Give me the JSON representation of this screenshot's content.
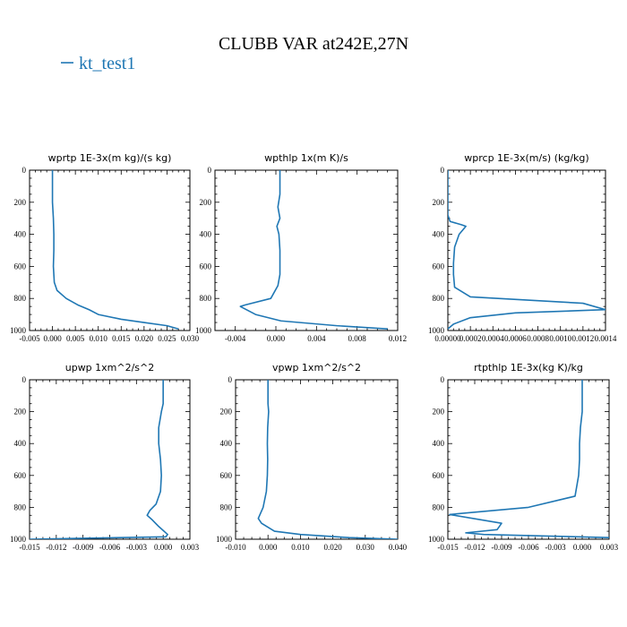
{
  "figure": {
    "title": "CLUBB VAR at242E,27N",
    "legend": [
      {
        "label": "kt_test1",
        "color": "#1f77b4"
      }
    ]
  },
  "chart_data": [
    {
      "type": "line",
      "title": "wprtp   1E-3x(m kg)/(s kg)",
      "xlim": [
        -0.005,
        0.03
      ],
      "ylim": [
        1000,
        0
      ],
      "xticks": [
        -0.005,
        0.0,
        0.005,
        0.01,
        0.015,
        0.02,
        0.025,
        0.03
      ],
      "xtick_labels": [
        "-0.005",
        "0.000",
        "0.005",
        "0.010",
        "0.015",
        "0.020",
        "0.025",
        "0.030"
      ],
      "yticks": [
        0,
        200,
        400,
        600,
        800,
        1000
      ],
      "ytick_labels": [
        "0",
        "200",
        "400",
        "600",
        "800",
        "1000"
      ],
      "series": [
        {
          "name": "kt_test1",
          "color": "#1f77b4",
          "x": [
            0.0,
            0.0,
            0.0002,
            0.0003,
            0.0003,
            0.0002,
            0.0004,
            0.001,
            0.003,
            0.0055,
            0.008,
            0.01,
            0.015,
            0.02,
            0.025,
            0.0275
          ],
          "y": [
            0,
            200,
            300,
            400,
            500,
            600,
            700,
            750,
            800,
            840,
            870,
            900,
            930,
            950,
            970,
            990
          ]
        }
      ]
    },
    {
      "type": "line",
      "title": "wpthlp   1x(m K)/s",
      "xlim": [
        -0.006,
        0.012
      ],
      "ylim": [
        1000,
        0
      ],
      "xticks": [
        -0.004,
        0.0,
        0.004,
        0.008,
        0.012
      ],
      "xtick_labels": [
        "-0.004",
        "0.000",
        "0.004",
        "0.008",
        "0.012"
      ],
      "yticks": [
        0,
        200,
        400,
        600,
        800,
        1000
      ],
      "ytick_labels": [
        "0",
        "200",
        "400",
        "600",
        "800",
        "1000"
      ],
      "series": [
        {
          "name": "kt_test1",
          "color": "#1f77b4",
          "x": [
            0.0004,
            0.0004,
            0.0002,
            0.0004,
            0.0001,
            0.0003,
            0.0004,
            0.0004,
            0.0002,
            -0.0005,
            -0.003,
            -0.0035,
            -0.002,
            0.0005,
            0.006,
            0.011
          ],
          "y": [
            0,
            150,
            230,
            300,
            350,
            400,
            500,
            650,
            720,
            800,
            840,
            850,
            900,
            940,
            970,
            990
          ]
        }
      ]
    },
    {
      "type": "line",
      "title": "wprcp   1E-3x(m/s) (kg/kg)",
      "xlim": [
        0.0,
        0.0014
      ],
      "ylim": [
        1000,
        0
      ],
      "xticks": [
        0.0,
        0.0002,
        0.0004,
        0.0006,
        0.0008,
        0.001,
        0.0012,
        0.0014
      ],
      "xtick_labels": [
        "0.00000",
        "0.0002",
        "0.0004",
        "0.0006",
        "0.0008",
        "0.0010",
        "0.0012",
        "0.0014"
      ],
      "yticks": [
        0,
        200,
        400,
        600,
        800,
        1000
      ],
      "ytick_labels": [
        "0",
        "200",
        "400",
        "600",
        "800",
        "1000"
      ],
      "series": [
        {
          "name": "kt_test1",
          "color": "#1f77b4",
          "x": [
            0.0,
            0.0,
            2e-05,
            0.00012,
            0.00016,
            0.0001,
            6e-05,
            5e-05,
            5e-05,
            6e-05,
            0.0002,
            0.0012,
            0.0014,
            0.0006,
            0.0002,
            5e-05,
            0.0
          ],
          "y": [
            0,
            280,
            320,
            340,
            350,
            400,
            480,
            580,
            650,
            730,
            790,
            830,
            870,
            890,
            920,
            960,
            990
          ]
        }
      ]
    },
    {
      "type": "line",
      "title": "upwp   1xm^2/s^2",
      "xlim": [
        -0.015,
        0.003
      ],
      "ylim": [
        1000,
        0
      ],
      "xticks": [
        -0.015,
        -0.012,
        -0.009,
        -0.006,
        -0.003,
        0.0,
        0.003
      ],
      "xtick_labels": [
        "-0.015",
        "-0.012",
        "-0.009",
        "-0.006",
        "-0.003",
        "0.000",
        "0.003"
      ],
      "yticks": [
        0,
        200,
        400,
        600,
        800,
        1000
      ],
      "ytick_labels": [
        "0",
        "200",
        "400",
        "600",
        "800",
        "1000"
      ],
      "series": [
        {
          "name": "kt_test1",
          "color": "#1f77b4",
          "x": [
            0.0,
            0.0,
            -0.0002,
            -0.0005,
            -0.0005,
            -0.0003,
            -0.0002,
            -0.0003,
            -0.0008,
            -0.0015,
            -0.0018,
            -0.0012,
            -0.0005,
            0.0005,
            0.0003,
            -0.015
          ],
          "y": [
            0,
            150,
            200,
            300,
            400,
            500,
            600,
            700,
            780,
            820,
            850,
            880,
            920,
            970,
            985,
            1000
          ]
        }
      ]
    },
    {
      "type": "line",
      "title": "vpwp   1xm^2/s^2",
      "xlim": [
        -0.01,
        0.04
      ],
      "ylim": [
        1000,
        0
      ],
      "xticks": [
        -0.01,
        0.0,
        0.01,
        0.02,
        0.03,
        0.04
      ],
      "xtick_labels": [
        "-0.010",
        "0.000",
        "0.010",
        "0.020",
        "0.030",
        "0.040"
      ],
      "yticks": [
        0,
        200,
        400,
        600,
        800,
        1000
      ],
      "ytick_labels": [
        "0",
        "200",
        "400",
        "600",
        "800",
        "1000"
      ],
      "series": [
        {
          "name": "kt_test1",
          "color": "#1f77b4",
          "x": [
            0.0,
            0.0,
            0.0002,
            -0.0001,
            -0.0002,
            -0.0001,
            -0.0002,
            -0.0005,
            -0.0015,
            -0.003,
            -0.002,
            0.002,
            0.01,
            0.025,
            0.04
          ],
          "y": [
            0,
            150,
            200,
            300,
            400,
            500,
            600,
            700,
            800,
            870,
            900,
            950,
            970,
            990,
            1000
          ]
        }
      ]
    },
    {
      "type": "line",
      "title": "rtpthlp   1E-3x(kg K)/kg",
      "xlim": [
        -0.015,
        0.003
      ],
      "ylim": [
        1000,
        0
      ],
      "xticks": [
        -0.015,
        -0.012,
        -0.009,
        -0.006,
        -0.003,
        0.0,
        0.003
      ],
      "xtick_labels": [
        "-0.015",
        "-0.012",
        "-0.009",
        "-0.006",
        "-0.003",
        "0.000",
        "0.003"
      ],
      "yticks": [
        0,
        200,
        400,
        600,
        800,
        1000
      ],
      "ytick_labels": [
        "0",
        "200",
        "400",
        "600",
        "800",
        "1000"
      ],
      "series": [
        {
          "name": "kt_test1",
          "color": "#1f77b4",
          "x": [
            0.0,
            0.0,
            -0.0002,
            -0.0003,
            -0.0003,
            -0.0004,
            -0.0008,
            -0.006,
            -0.0148,
            -0.009,
            -0.0095,
            -0.013,
            -0.011,
            -0.004,
            0.003
          ],
          "y": [
            0,
            200,
            300,
            400,
            500,
            600,
            730,
            800,
            845,
            900,
            940,
            960,
            970,
            980,
            990
          ]
        }
      ]
    }
  ]
}
